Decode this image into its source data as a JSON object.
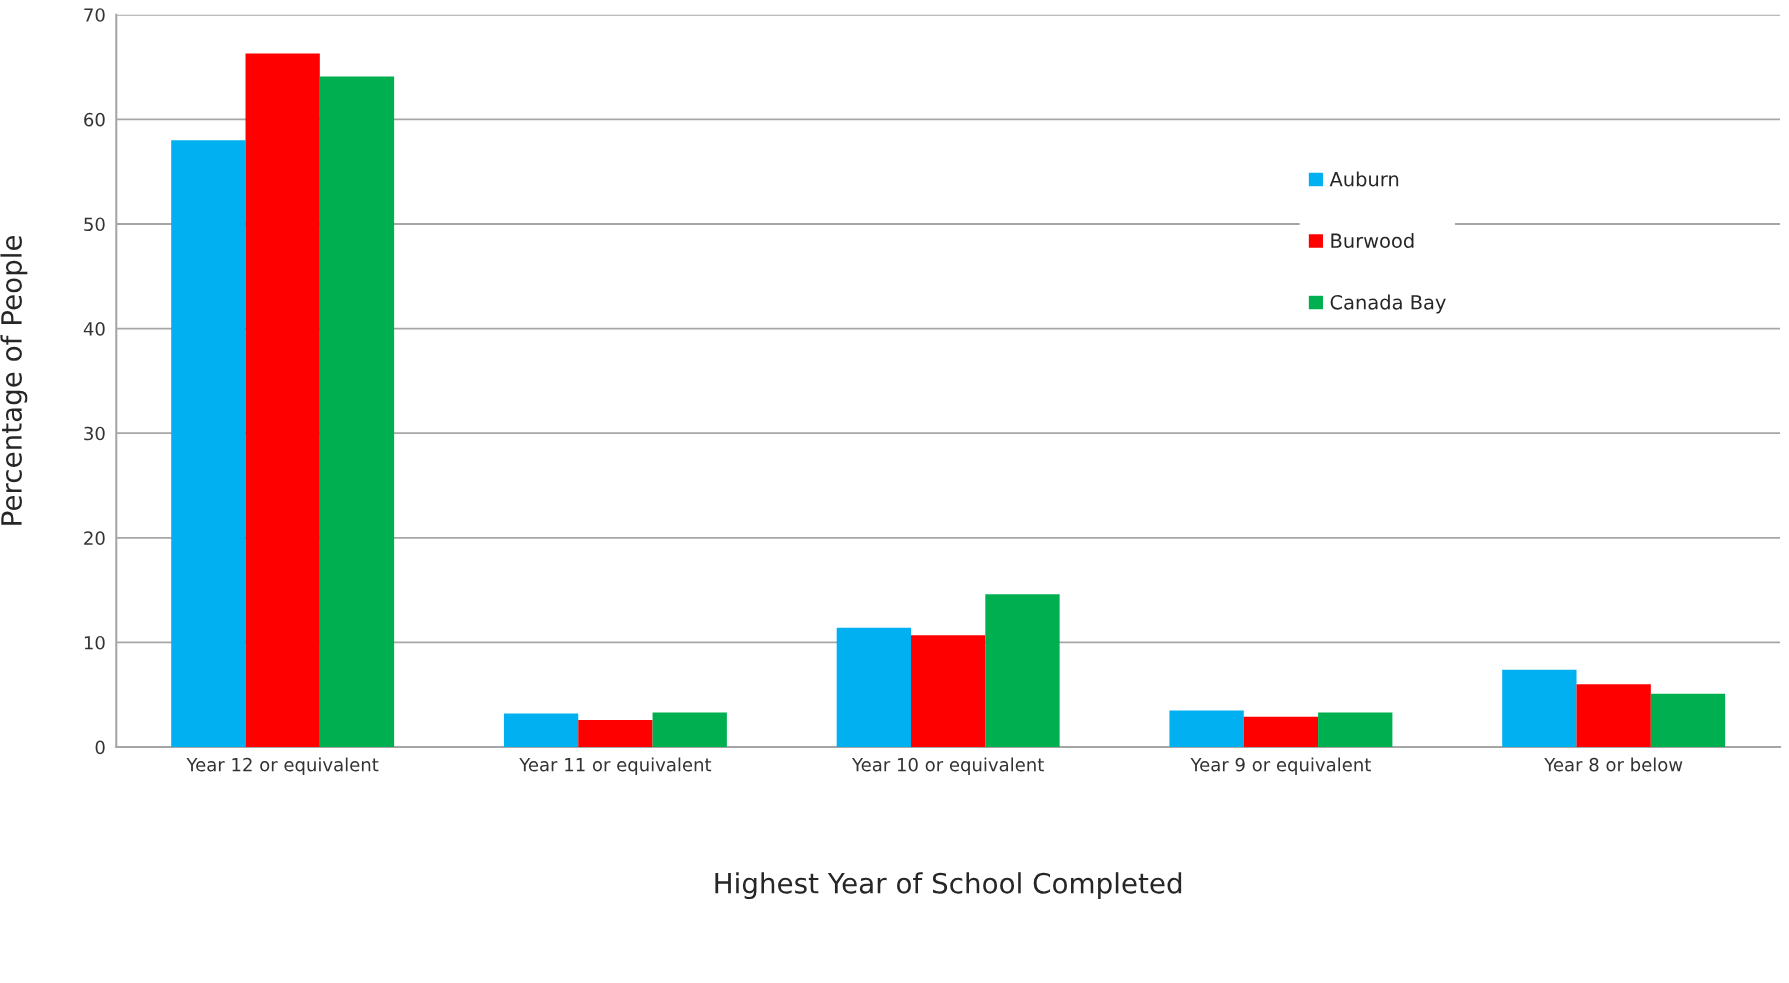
{
  "chart_data": {
    "type": "bar",
    "xlabel": "Highest Year of School Completed",
    "ylabel": "Percentage of People",
    "categories": [
      "Year 12 or equivalent",
      "Year 11 or equivalent",
      "Year 10 or equivalent",
      "Year 9 or equivalent",
      "Year 8 or below"
    ],
    "series": [
      {
        "name": "Auburn",
        "color": "#00b0f0",
        "values": [
          58.0,
          3.2,
          11.4,
          3.5,
          7.4
        ]
      },
      {
        "name": "Burwood",
        "color": "#ff0000",
        "values": [
          66.3,
          2.6,
          10.7,
          2.9,
          6.0
        ]
      },
      {
        "name": "Canada Bay",
        "color": "#00b050",
        "values": [
          64.1,
          3.3,
          14.6,
          3.3,
          5.1
        ]
      }
    ],
    "ylim": [
      0,
      70
    ],
    "yticks": [
      0,
      10,
      20,
      30,
      40,
      50,
      60,
      70
    ],
    "grid": "y",
    "legend": "top right"
  }
}
